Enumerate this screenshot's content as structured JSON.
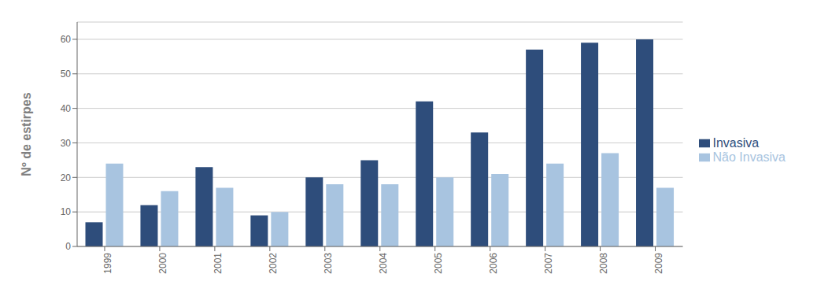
{
  "chart_data": {
    "type": "bar",
    "categories": [
      "1999",
      "2000",
      "2001",
      "2002",
      "2003",
      "2004",
      "2005",
      "2006",
      "2007",
      "2008",
      "2009"
    ],
    "series": [
      {
        "name": "Invasiva",
        "color": "#2E4D7B",
        "values": [
          7,
          12,
          23,
          9,
          20,
          25,
          42,
          33,
          57,
          59,
          60
        ]
      },
      {
        "name": "Não Invasiva",
        "color": "#A8C4E0",
        "values": [
          24,
          16,
          17,
          10,
          18,
          18,
          20,
          21,
          24,
          27,
          17
        ]
      }
    ],
    "ylabel": "Nº de estirpes",
    "ylim": [
      0,
      65
    ],
    "yticks": [
      0,
      10,
      20,
      30,
      40,
      50,
      60
    ],
    "grid": true,
    "legend": "right"
  }
}
